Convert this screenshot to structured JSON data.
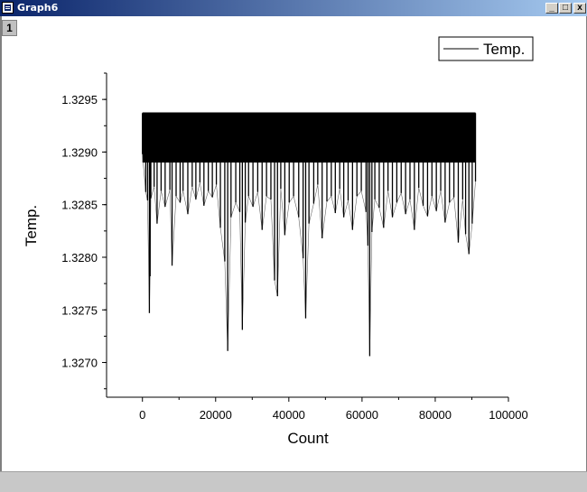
{
  "window": {
    "title": "Graph6",
    "layer_label": "1",
    "buttons": {
      "minimize": "_",
      "maximize": "□",
      "close": "x"
    }
  },
  "chart_data": {
    "type": "line",
    "title": "",
    "xlabel": "Count",
    "ylabel": "Temp.",
    "xlim": [
      -9800,
      100000
    ],
    "ylim": [
      1.32667,
      1.32975
    ],
    "xticks": [
      0,
      20000,
      40000,
      60000,
      80000,
      100000
    ],
    "xtick_labels": [
      "0",
      "20000",
      "40000",
      "60000",
      "80000",
      "100000"
    ],
    "yticks": [
      1.327,
      1.3275,
      1.328,
      1.3285,
      1.329,
      1.3295
    ],
    "ytick_labels": [
      "1.3270",
      "1.3275",
      "1.3280",
      "1.3285",
      "1.3290",
      "1.3295"
    ],
    "grid": false,
    "legend": {
      "position": "top-right",
      "entries": [
        "Temp."
      ]
    },
    "series": [
      {
        "name": "Temp.",
        "color": "#000000",
        "upper": 1.32937,
        "upper_x": [
          0,
          91000
        ],
        "x": [
          0,
          900,
          1400,
          1900,
          2100,
          2300,
          3200,
          4000,
          5100,
          6200,
          7500,
          8100,
          9200,
          10300,
          11100,
          12400,
          13600,
          14600,
          15700,
          16800,
          18000,
          19100,
          20200,
          21300,
          22500,
          23300,
          24200,
          25500,
          26600,
          27300,
          28100,
          29000,
          30200,
          31500,
          32700,
          33900,
          35100,
          36100,
          36900,
          37800,
          38900,
          40100,
          41300,
          42700,
          43900,
          44600,
          45500,
          46800,
          47900,
          49100,
          50400,
          51600,
          52700,
          53900,
          55000,
          56200,
          57400,
          58600,
          59800,
          61100,
          61600,
          62100,
          62700,
          63500,
          64700,
          65900,
          67100,
          68300,
          69500,
          70700,
          71900,
          73100,
          74300,
          75500,
          76700,
          77900,
          79100,
          80300,
          81500,
          82700,
          83900,
          85100,
          86300,
          87500,
          88300,
          89200,
          90100,
          91000
        ],
        "y": [
          1.32898,
          1.32862,
          1.32854,
          1.32747,
          1.32782,
          1.32856,
          1.32867,
          1.32832,
          1.32863,
          1.32848,
          1.32864,
          1.32792,
          1.32858,
          1.32852,
          1.32863,
          1.32841,
          1.32867,
          1.32855,
          1.32871,
          1.32849,
          1.32863,
          1.32857,
          1.32869,
          1.32828,
          1.32796,
          1.32711,
          1.32838,
          1.32852,
          1.32843,
          1.32731,
          1.32833,
          1.32858,
          1.32848,
          1.32862,
          1.32826,
          1.32858,
          1.32855,
          1.32778,
          1.32763,
          1.32865,
          1.32821,
          1.32852,
          1.32858,
          1.32838,
          1.32799,
          1.32742,
          1.32832,
          1.32851,
          1.32869,
          1.32818,
          1.32853,
          1.32858,
          1.32842,
          1.32865,
          1.32838,
          1.32854,
          1.32826,
          1.32858,
          1.32863,
          1.32843,
          1.32811,
          1.32706,
          1.32824,
          1.32855,
          1.32847,
          1.32828,
          1.32863,
          1.32838,
          1.32852,
          1.32861,
          1.32841,
          1.32855,
          1.32826,
          1.32866,
          1.32849,
          1.32839,
          1.32858,
          1.32844,
          1.32863,
          1.32833,
          1.32852,
          1.32857,
          1.32814,
          1.32855,
          1.32822,
          1.32803,
          1.32832,
          1.32872
        ]
      }
    ]
  }
}
